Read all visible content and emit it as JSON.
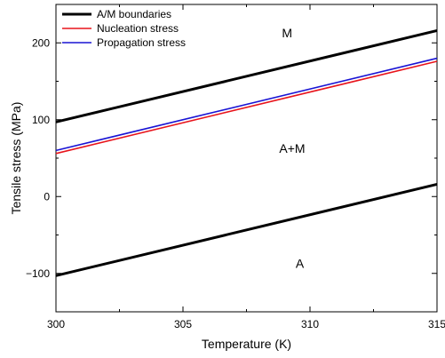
{
  "chart_data": {
    "type": "line",
    "xlabel": "Temperature (K)",
    "ylabel": "Tensile stress (MPa)",
    "xlim": [
      300,
      315
    ],
    "ylim": [
      -150,
      250
    ],
    "xticks": [
      300,
      305,
      310,
      315
    ],
    "yticks": [
      -100,
      0,
      100,
      200
    ],
    "xtick_labels": [
      "300",
      "305",
      "310",
      "315"
    ],
    "ytick_labels": [
      "−100",
      "0",
      "100",
      "200"
    ],
    "grid": false,
    "legend_position": "top-left",
    "series": [
      {
        "name": "A/M boundaries",
        "color": "#000000",
        "x": [
          300,
          315
        ],
        "y": [
          97,
          216
        ]
      },
      {
        "name": "",
        "color": "#000000",
        "x": [
          300,
          315
        ],
        "y": [
          -103,
          16
        ]
      },
      {
        "name": "Nucleation stress",
        "color": "#e8141c",
        "x": [
          300,
          315
        ],
        "y": [
          56,
          176
        ]
      },
      {
        "name": "Propagation stress",
        "color": "#1a14d4",
        "x": [
          300,
          315
        ],
        "y": [
          60,
          180
        ]
      }
    ],
    "annotations": [
      {
        "text": "M",
        "x": 309.1,
        "y": 207
      },
      {
        "text": "A+M",
        "x": 309.3,
        "y": 57
      },
      {
        "text": "A",
        "x": 309.6,
        "y": -93
      }
    ]
  }
}
